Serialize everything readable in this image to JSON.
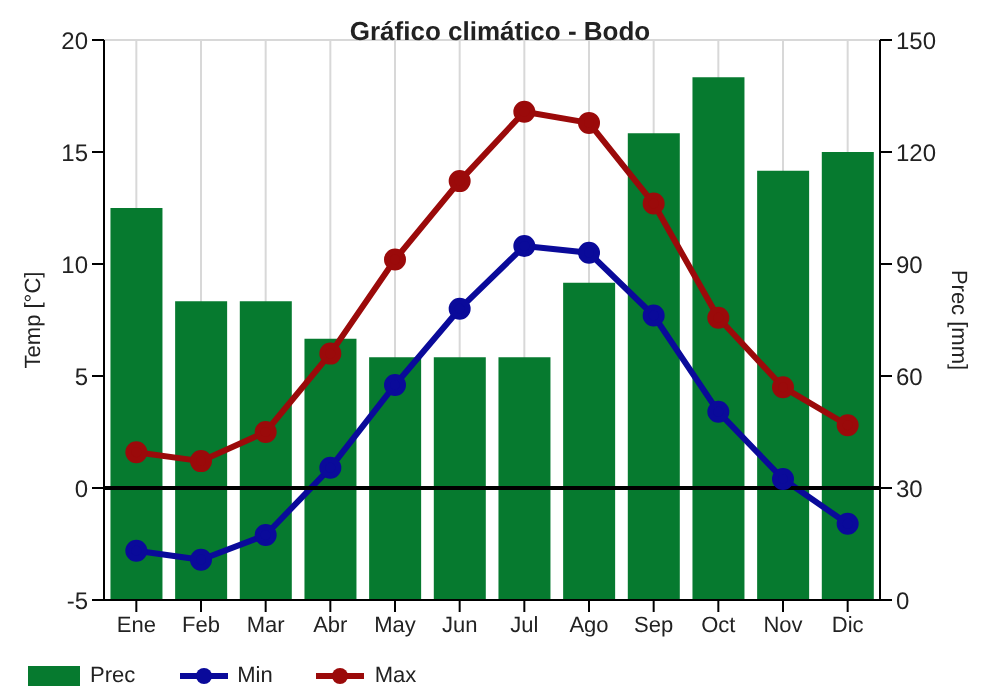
{
  "chart_data": {
    "type": "bar",
    "title": "Gráfico climático - Bodo",
    "ylabel": "Temp [°C]",
    "y2label": "Prec [mm]",
    "categories": [
      "Ene",
      "Feb",
      "Mar",
      "Abr",
      "May",
      "Jun",
      "Jul",
      "Ago",
      "Sep",
      "Oct",
      "Nov",
      "Dic"
    ],
    "series": [
      {
        "name": "Prec",
        "axis": "y2",
        "color": "#067a2f",
        "values": [
          105,
          80,
          80,
          70,
          65,
          65,
          65,
          85,
          125,
          140,
          115,
          120
        ]
      },
      {
        "name": "Min",
        "type": "line",
        "color": "#0a0a9a",
        "values": [
          -2.8,
          -3.2,
          -2.1,
          0.9,
          4.6,
          8.0,
          10.8,
          10.5,
          7.7,
          3.4,
          0.4,
          -1.6
        ]
      },
      {
        "name": "Max",
        "type": "line",
        "color": "#9b0a0a",
        "values": [
          1.6,
          1.2,
          2.5,
          6.0,
          10.2,
          13.7,
          16.8,
          16.3,
          12.7,
          7.6,
          4.5,
          2.8
        ]
      }
    ],
    "ylim": [
      -5,
      20
    ],
    "yticks": [
      -5,
      0,
      5,
      10,
      15,
      20
    ],
    "y2lim": [
      0,
      150
    ],
    "y2ticks": [
      0,
      30,
      60,
      90,
      120,
      150
    ],
    "ref_lines": [
      {
        "axis": "y",
        "value": 0,
        "color": "#000000"
      }
    ],
    "grid": true,
    "legend": "bottom left",
    "marker": "circle",
    "line_style": "solid"
  }
}
